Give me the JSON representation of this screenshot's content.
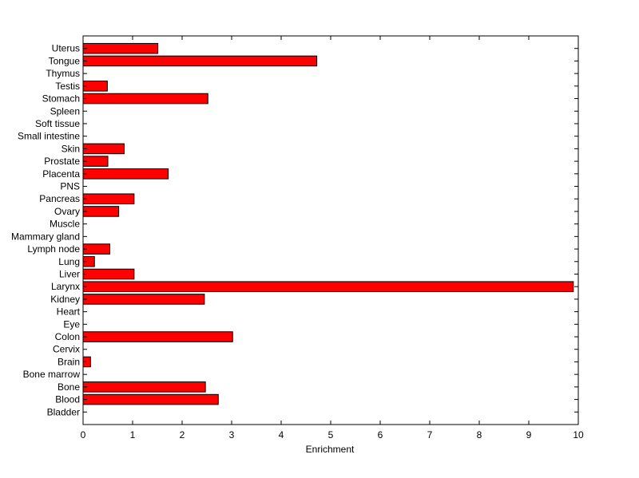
{
  "chart_data": {
    "type": "bar",
    "orientation": "horizontal",
    "title": "",
    "xlabel": "Enrichment",
    "ylabel": "",
    "xlim": [
      0,
      10
    ],
    "xticks": [
      "0",
      "1",
      "2",
      "3",
      "4",
      "5",
      "6",
      "7",
      "8",
      "9",
      "10"
    ],
    "grid": false,
    "legend": "none",
    "bar_color": "#ff0000",
    "bar_edge_color": "#000000",
    "categories": [
      "Bladder",
      "Blood",
      "Bone",
      "Bone marrow",
      "Brain",
      "Cervix",
      "Colon",
      "Eye",
      "Heart",
      "Kidney",
      "Larynx",
      "Liver",
      "Lung",
      "Lymph node",
      "Mammary gland",
      "Muscle",
      "Ovary",
      "Pancreas",
      "PNS",
      "Placenta",
      "Prostate",
      "Skin",
      "Small intestine",
      "Soft tissue",
      "Spleen",
      "Stomach",
      "Testis",
      "Thymus",
      "Tongue",
      "Uterus"
    ],
    "values": [
      0,
      2.73,
      2.47,
      0,
      0.15,
      0,
      3.02,
      0,
      0,
      2.45,
      9.9,
      1.03,
      0.23,
      0.54,
      0,
      0,
      0.72,
      1.03,
      0,
      1.72,
      0.5,
      0.83,
      0,
      0,
      0,
      2.52,
      0.49,
      0,
      4.72,
      1.51
    ]
  }
}
